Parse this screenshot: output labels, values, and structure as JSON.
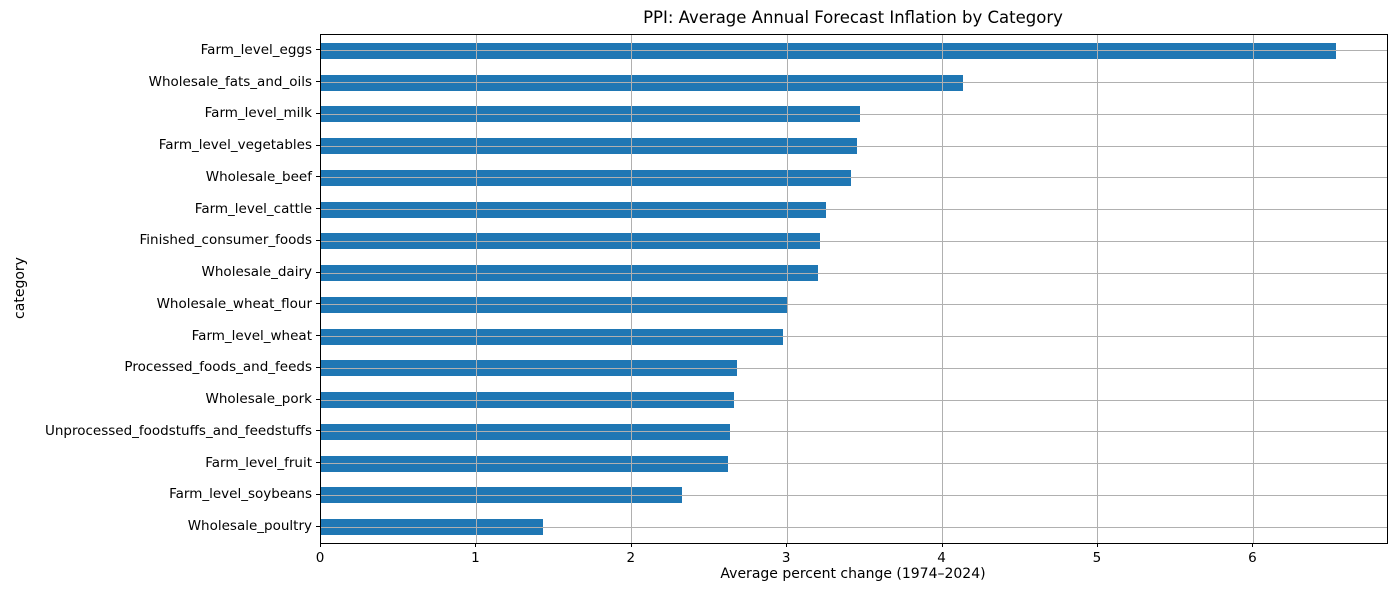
{
  "chart_data": {
    "type": "bar",
    "orientation": "horizontal",
    "title": "PPI: Average Annual Forecast Inflation by Category",
    "xlabel": "Average percent change (1974–2024)",
    "ylabel": "category",
    "categories": [
      "Farm_level_eggs",
      "Wholesale_fats_and_oils",
      "Farm_level_milk",
      "Farm_level_vegetables",
      "Wholesale_beef",
      "Farm_level_cattle",
      "Finished_consumer_foods",
      "Wholesale_dairy",
      "Wholesale_wheat_flour",
      "Farm_level_wheat",
      "Processed_foods_and_feeds",
      "Wholesale_pork",
      "Unprocessed_foodstuffs_and_feedstuffs",
      "Farm_level_fruit",
      "Farm_level_soybeans",
      "Wholesale_poultry"
    ],
    "values": [
      6.53,
      4.13,
      3.47,
      3.45,
      3.41,
      3.25,
      3.21,
      3.2,
      3.0,
      2.97,
      2.68,
      2.66,
      2.63,
      2.62,
      2.32,
      1.43
    ],
    "xticks": [
      0,
      1,
      2,
      3,
      4,
      5,
      6
    ],
    "xlim": [
      0,
      6.86
    ],
    "grid": true,
    "legend": false,
    "bar_color": "#1f77b4",
    "grid_color": "#b0b0b0",
    "spine_color": "#000000"
  }
}
